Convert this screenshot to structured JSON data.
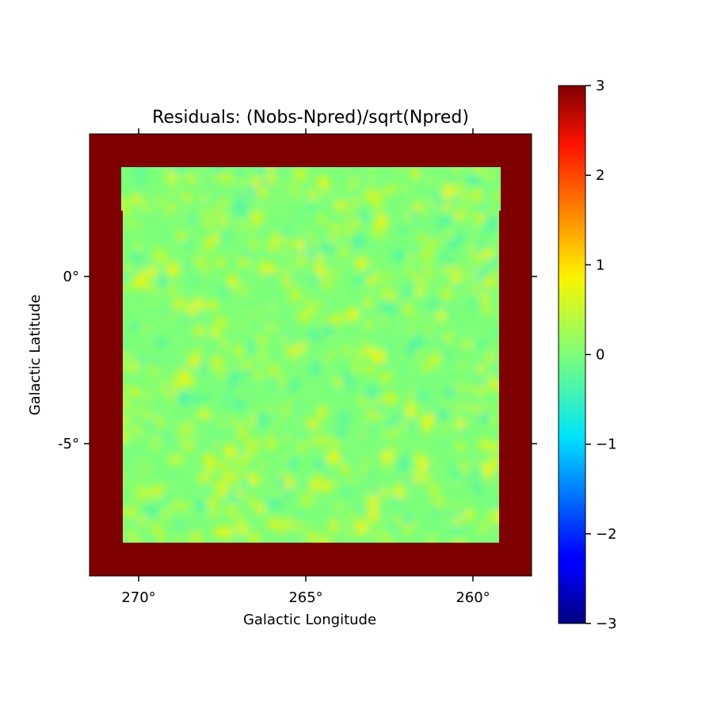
{
  "chart_data": {
    "type": "heatmap",
    "title": "Residuals: (Nobs-Npred)/sqrt(Npred)",
    "xlabel": "Galactic Longitude",
    "ylabel": "Galactic Latitude",
    "x_range_deg": [
      271.5,
      258.2
    ],
    "y_range_deg": [
      -8.9,
      4.3
    ],
    "x_ticks": [
      {
        "value": 270,
        "label": "270°"
      },
      {
        "value": 265,
        "label": "265°"
      },
      {
        "value": 260,
        "label": "260°"
      }
    ],
    "y_ticks": [
      {
        "value": 0,
        "label": "0°"
      },
      {
        "value": -5,
        "label": "-5°"
      }
    ],
    "colormap": "jet",
    "colorbar": {
      "vmin": -3,
      "vmax": 3,
      "ticks": [
        {
          "value": 3,
          "label": "3"
        },
        {
          "value": 2,
          "label": "2"
        },
        {
          "value": 1,
          "label": "1"
        },
        {
          "value": 0,
          "label": "0"
        },
        {
          "value": -1,
          "label": "−1"
        },
        {
          "value": -2,
          "label": "−2"
        },
        {
          "value": -3,
          "label": "−3"
        }
      ]
    },
    "background_value": 3,
    "residual_map": {
      "mean": 0.0,
      "typical_range": [
        -0.4,
        0.8
      ],
      "lon_range_deg": [
        270.5,
        259.2
      ],
      "lat_range_deg": [
        -7.9,
        3.3
      ],
      "notch_below_lat_deg": 2.0
    }
  },
  "colors": {
    "background_pixel": "#7f0000",
    "axis": "#000000"
  }
}
